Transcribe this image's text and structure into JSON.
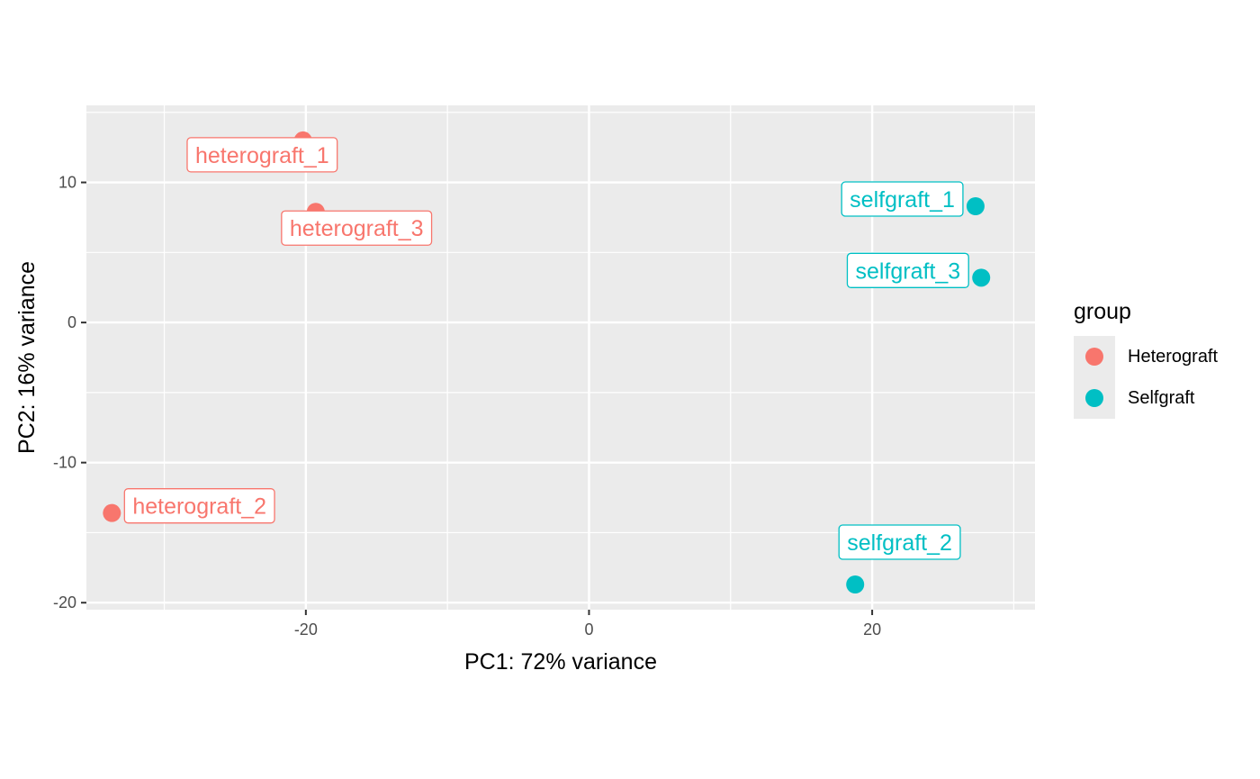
{
  "chart_data": {
    "type": "scatter",
    "xlabel": "PC1: 72% variance",
    "ylabel": "PC2: 16% variance",
    "xlim": [
      -35.5,
      31.5
    ],
    "ylim": [
      -20.5,
      15.5
    ],
    "x_ticks": [
      -20,
      0,
      20
    ],
    "y_ticks": [
      10,
      0,
      -10,
      -20
    ],
    "x_tick_labels": [
      "-20",
      "0",
      "20"
    ],
    "y_tick_labels": [
      "10",
      "0",
      "-10",
      "-20"
    ],
    "x_minor": [
      -30,
      -10,
      10,
      30
    ],
    "y_minor": [
      15,
      5,
      -5,
      -15
    ],
    "grid": true,
    "legend": {
      "title": "group",
      "placement": "right",
      "entries": [
        {
          "name": "Heterograft",
          "color": "#F8766D"
        },
        {
          "name": "Selfgraft",
          "color": "#00BFC4"
        }
      ]
    },
    "series": [
      {
        "name": "Heterograft",
        "color": "#F8766D",
        "points": [
          {
            "label": "heterograft_1",
            "x": -20.2,
            "y": 13.0,
            "label_side": "below-left"
          },
          {
            "label": "heterograft_3",
            "x": -19.3,
            "y": 7.9,
            "label_side": "below-right"
          },
          {
            "label": "heterograft_2",
            "x": -33.7,
            "y": -13.6,
            "label_side": "right"
          }
        ]
      },
      {
        "name": "Selfgraft",
        "color": "#00BFC4",
        "points": [
          {
            "label": "selfgraft_1",
            "x": 27.3,
            "y": 8.3,
            "label_side": "left"
          },
          {
            "label": "selfgraft_3",
            "x": 27.7,
            "y": 3.2,
            "label_side": "left"
          },
          {
            "label": "selfgraft_2",
            "x": 18.8,
            "y": -18.7,
            "label_side": "above-right"
          }
        ]
      }
    ]
  }
}
